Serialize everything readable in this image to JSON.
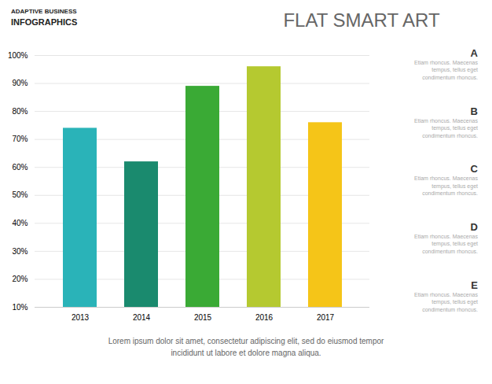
{
  "chart_data": {
    "type": "bar",
    "title": "FLAT SMART ART",
    "categories": [
      "2013",
      "2014",
      "2015",
      "2016",
      "2017"
    ],
    "values": [
      74,
      62,
      89,
      96,
      76
    ],
    "colors": [
      "#2ab3b8",
      "#1a8a6e",
      "#3aaa35",
      "#b5c930",
      "#f5c518"
    ],
    "ylim": [
      10,
      100
    ],
    "yticks": [
      {
        "value": 10,
        "label": "10%"
      },
      {
        "value": 20,
        "label": "20%"
      },
      {
        "value": 30,
        "label": "30%"
      },
      {
        "value": 40,
        "label": "40%"
      },
      {
        "value": 50,
        "label": "50%"
      },
      {
        "value": 60,
        "label": "60%"
      },
      {
        "value": 70,
        "label": "70%"
      },
      {
        "value": 80,
        "label": "80%"
      },
      {
        "value": 90,
        "label": "90%"
      },
      {
        "value": 100,
        "label": "100%"
      }
    ],
    "grid": true,
    "annotations": [
      "ADAPTIVE BUSINESS",
      "INFOGRAPHICS",
      "A",
      "Etiam rhoncus. Maecenas\ntempus, tellus eget\ncondimentum rhoncus.",
      "B",
      "Etiam rhoncus. Maecenas\ntempus, tellus eget\ncondimentum rhoncus.",
      "C",
      "Etiam rhoncus. Maecenas\ntempus, tellus eget\ncondimentum rhoncus.",
      "D",
      "Etiam rhoncus. Maecenas\ntempus, tellus eget\ncondimentum rhoncus.",
      "E",
      "Etiam rhoncus. Maecenas\ntempus, tellus eget\ncondimentum rhoncus.",
      "Lorem ipsum dolor sit amet, consectetur adipiscing elit, sed do eiusmod tempor\nincididunt ut labore et dolore magna aliqua."
    ]
  }
}
